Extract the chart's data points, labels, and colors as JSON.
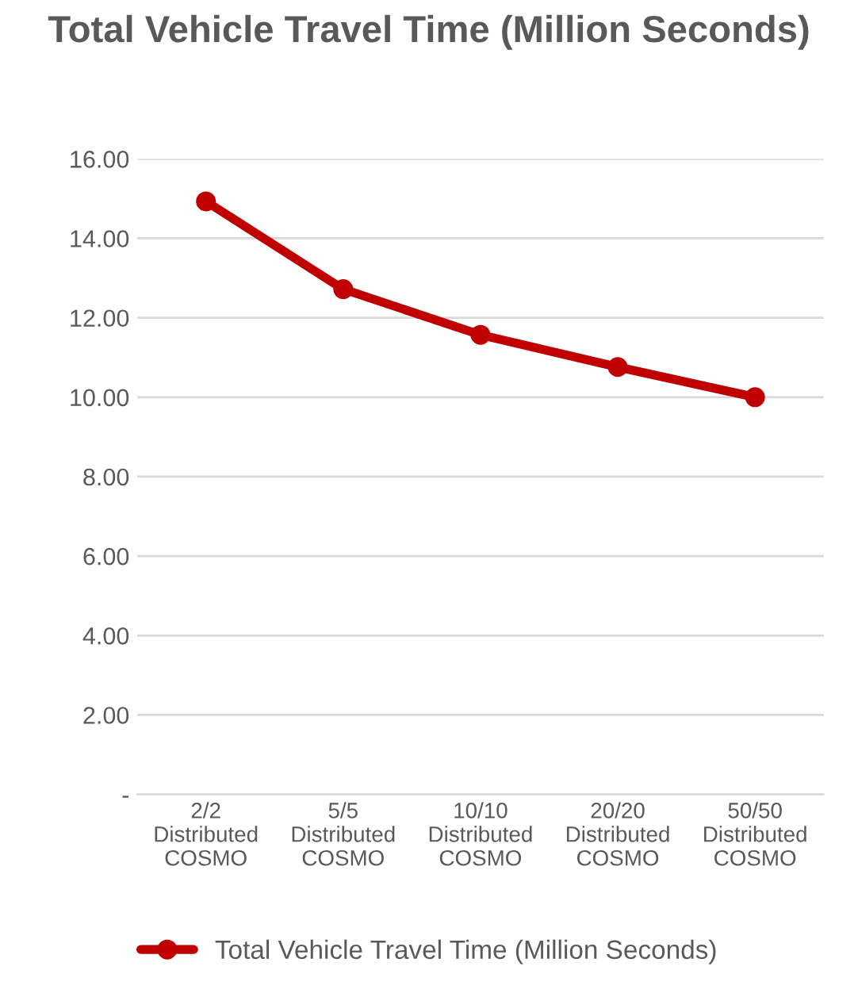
{
  "chart_data": {
    "type": "line",
    "title": "Total Vehicle Travel Time (Million Seconds)",
    "categories": [
      "2/2\nDistributed\nCOSMO",
      "5/5\nDistributed\nCOSMO",
      "10/10\nDistributed\nCOSMO",
      "20/20\nDistributed\nCOSMO",
      "50/50\nDistributed\nCOSMO"
    ],
    "series": [
      {
        "name": "Total Vehicle Travel Time (Million Seconds)",
        "color": "#c00000",
        "values": [
          14.93,
          12.72,
          11.57,
          10.76,
          10.0
        ]
      }
    ],
    "ylim": [
      0,
      16
    ],
    "yticks": [
      {
        "value": 0,
        "label": "-"
      },
      {
        "value": 2,
        "label": "2.00"
      },
      {
        "value": 4,
        "label": "4.00"
      },
      {
        "value": 6,
        "label": "6.00"
      },
      {
        "value": 8,
        "label": "8.00"
      },
      {
        "value": 10,
        "label": "10.00"
      },
      {
        "value": 12,
        "label": "12.00"
      },
      {
        "value": 14,
        "label": "14.00"
      },
      {
        "value": 16,
        "label": "16.00"
      }
    ],
    "grid": "y",
    "legend": "bottom",
    "marker": "circle",
    "line_style": "solid"
  }
}
